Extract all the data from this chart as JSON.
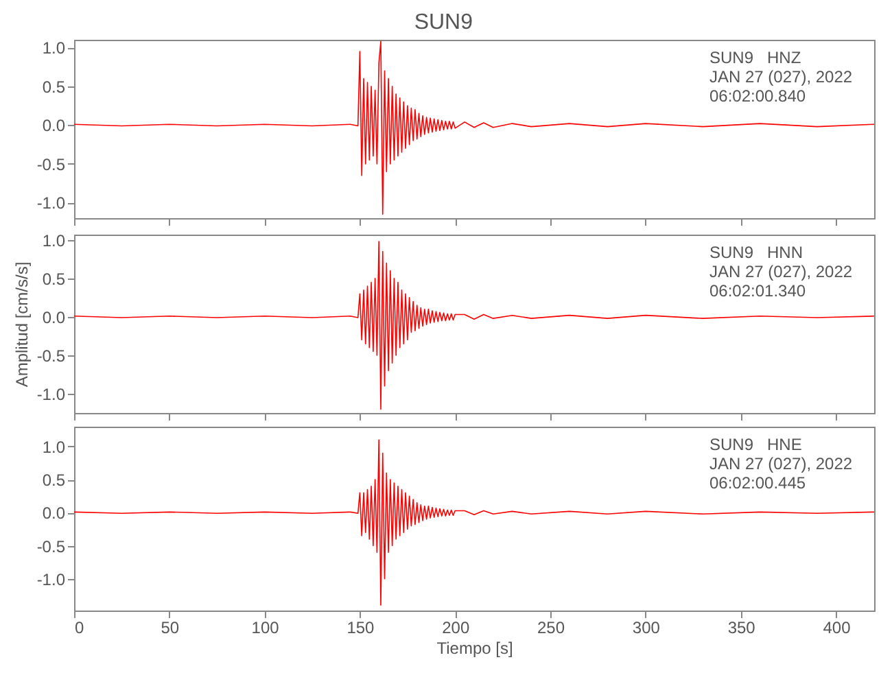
{
  "chart_data": [
    {
      "type": "line",
      "title": "SUN9",
      "annotations": [
        "SUN9   HNZ",
        "JAN 27 (027), 2022",
        "06:02:00.840"
      ],
      "tick_labels": "y",
      "x": [
        0,
        25,
        50,
        75,
        100,
        125,
        145,
        149,
        150,
        151,
        152,
        153,
        154,
        155,
        156,
        157,
        158,
        159,
        160,
        161,
        162,
        163,
        164,
        165,
        166,
        167,
        168,
        169,
        170,
        171,
        172,
        173,
        174,
        175,
        176,
        177,
        178,
        179,
        180,
        181,
        182,
        183,
        184,
        185,
        186,
        187,
        188,
        189,
        190,
        191,
        192,
        193,
        194,
        195,
        196,
        197,
        198,
        199,
        200,
        205,
        210,
        215,
        220,
        230,
        240,
        260,
        280,
        300,
        330,
        360,
        390,
        420
      ],
      "xlim": [
        0,
        420
      ],
      "xticks": [
        0,
        50,
        100,
        150,
        200,
        250,
        300,
        350,
        400
      ],
      "ylim": [
        -1.2,
        1.1
      ],
      "yticks": [
        {
          "value": -1,
          "label": "-1.0"
        },
        {
          "value": -0.5,
          "label": "-0.5"
        },
        {
          "value": 0,
          "label": "0.0"
        },
        {
          "value": 0.5,
          "label": "0.5"
        },
        {
          "value": 1,
          "label": "1.0"
        }
      ],
      "series": [
        {
          "color": "#ff0000",
          "values": [
            0.01,
            -0.01,
            0.01,
            -0.01,
            0.01,
            -0.01,
            0.01,
            -0.01,
            0.95,
            -0.65,
            0.6,
            -0.5,
            0.55,
            -0.45,
            0.5,
            -0.4,
            0.45,
            -0.5,
            0.8,
            1.08,
            -1.15,
            0.7,
            -0.6,
            0.6,
            -0.5,
            0.5,
            -0.45,
            0.4,
            -0.4,
            0.35,
            -0.35,
            0.3,
            -0.3,
            0.25,
            -0.25,
            0.22,
            -0.2,
            0.2,
            -0.18,
            0.15,
            -0.15,
            0.12,
            -0.12,
            0.1,
            -0.1,
            0.09,
            -0.09,
            0.08,
            -0.08,
            0.07,
            -0.07,
            0.06,
            -0.06,
            0.05,
            -0.05,
            0.05,
            -0.05,
            0.04,
            -0.04,
            0.04,
            -0.03,
            0.03,
            -0.03,
            0.02,
            -0.02,
            0.02,
            -0.02,
            0.02,
            -0.02,
            0.02,
            -0.02,
            0.01
          ]
        }
      ]
    },
    {
      "type": "line",
      "ylabel": "Amplitud [cm/s/s]",
      "annotations": [
        "SUN9   HNN",
        "JAN 27 (027), 2022",
        "06:02:01.340"
      ],
      "tick_labels": "y",
      "x": [
        0,
        25,
        50,
        75,
        100,
        125,
        145,
        149,
        150,
        151,
        152,
        153,
        154,
        155,
        156,
        157,
        158,
        159,
        160,
        161,
        162,
        163,
        164,
        165,
        166,
        167,
        168,
        169,
        170,
        171,
        172,
        173,
        174,
        175,
        176,
        177,
        178,
        179,
        180,
        181,
        182,
        183,
        184,
        185,
        186,
        187,
        188,
        189,
        190,
        191,
        192,
        193,
        194,
        195,
        196,
        197,
        198,
        199,
        200,
        205,
        210,
        215,
        220,
        230,
        240,
        260,
        280,
        300,
        330,
        360,
        390,
        420
      ],
      "xlim": [
        0,
        420
      ],
      "xticks": [
        0,
        50,
        100,
        150,
        200,
        250,
        300,
        350,
        400
      ],
      "ylim": [
        -1.25,
        1.07
      ],
      "yticks": [
        {
          "value": -1,
          "label": "-1.0"
        },
        {
          "value": -0.5,
          "label": "-0.5"
        },
        {
          "value": 0,
          "label": "0.0"
        },
        {
          "value": 0.5,
          "label": "0.5"
        },
        {
          "value": 1,
          "label": "1.0"
        }
      ],
      "series": [
        {
          "color": "#ff0000",
          "values": [
            0.01,
            -0.01,
            0.01,
            -0.01,
            0.01,
            -0.01,
            0.01,
            -0.01,
            0.3,
            -0.3,
            0.35,
            -0.35,
            0.4,
            -0.4,
            0.45,
            -0.45,
            0.5,
            -0.5,
            0.98,
            -1.2,
            0.85,
            -0.9,
            0.7,
            -0.7,
            0.6,
            -0.6,
            0.5,
            -0.5,
            0.45,
            -0.4,
            0.35,
            -0.35,
            0.3,
            -0.3,
            0.25,
            -0.2,
            0.2,
            -0.18,
            0.15,
            -0.15,
            0.12,
            -0.12,
            0.1,
            -0.1,
            0.1,
            -0.08,
            0.08,
            -0.07,
            0.07,
            -0.06,
            0.06,
            -0.05,
            0.05,
            -0.05,
            0.04,
            -0.04,
            0.04,
            -0.04,
            0.03,
            0.03,
            -0.03,
            0.03,
            -0.02,
            0.02,
            -0.02,
            0.02,
            -0.02,
            0.02,
            -0.02,
            0.01,
            -0.01,
            0.01
          ]
        }
      ]
    },
    {
      "type": "line",
      "xlabel": "Tiempo [s]",
      "annotations": [
        "SUN9   HNE",
        "JAN 27 (027), 2022",
        "06:02:00.445"
      ],
      "x": [
        0,
        25,
        50,
        75,
        100,
        125,
        145,
        149,
        150,
        151,
        152,
        153,
        154,
        155,
        156,
        157,
        158,
        159,
        160,
        161,
        162,
        163,
        164,
        165,
        166,
        167,
        168,
        169,
        170,
        171,
        172,
        173,
        174,
        175,
        176,
        177,
        178,
        179,
        180,
        181,
        182,
        183,
        184,
        185,
        186,
        187,
        188,
        189,
        190,
        191,
        192,
        193,
        194,
        195,
        196,
        197,
        198,
        199,
        200,
        205,
        210,
        215,
        220,
        230,
        240,
        260,
        280,
        300,
        330,
        360,
        390,
        420
      ],
      "xlim": [
        0,
        420
      ],
      "xticks": [
        0,
        50,
        100,
        150,
        200,
        250,
        300,
        350,
        400
      ],
      "ylim": [
        -1.48,
        1.3
      ],
      "yticks": [
        {
          "value": -1,
          "label": "-1.0"
        },
        {
          "value": -0.5,
          "label": "-0.5"
        },
        {
          "value": 0,
          "label": "0.0"
        },
        {
          "value": 0.5,
          "label": "0.5"
        },
        {
          "value": 1,
          "label": "1.0"
        }
      ],
      "series": [
        {
          "color": "#ff0000",
          "values": [
            0.01,
            -0.01,
            0.01,
            -0.01,
            0.01,
            -0.01,
            0.01,
            -0.01,
            0.3,
            -0.35,
            0.3,
            -0.3,
            0.35,
            -0.4,
            0.4,
            -0.5,
            0.5,
            -0.6,
            1.1,
            -1.4,
            0.9,
            -1.0,
            0.6,
            -0.6,
            0.5,
            -0.5,
            0.45,
            -0.4,
            0.4,
            -0.35,
            0.35,
            -0.3,
            0.3,
            -0.25,
            0.25,
            -0.2,
            0.2,
            -0.18,
            0.15,
            -0.15,
            0.12,
            -0.12,
            0.1,
            -0.1,
            0.1,
            -0.08,
            0.08,
            -0.07,
            0.07,
            -0.06,
            0.06,
            -0.05,
            0.05,
            -0.05,
            0.04,
            -0.04,
            0.04,
            -0.04,
            0.03,
            0.03,
            -0.03,
            0.03,
            -0.02,
            0.02,
            -0.02,
            0.02,
            -0.02,
            0.02,
            -0.02,
            0.01,
            -0.01,
            0.01
          ]
        }
      ]
    }
  ]
}
